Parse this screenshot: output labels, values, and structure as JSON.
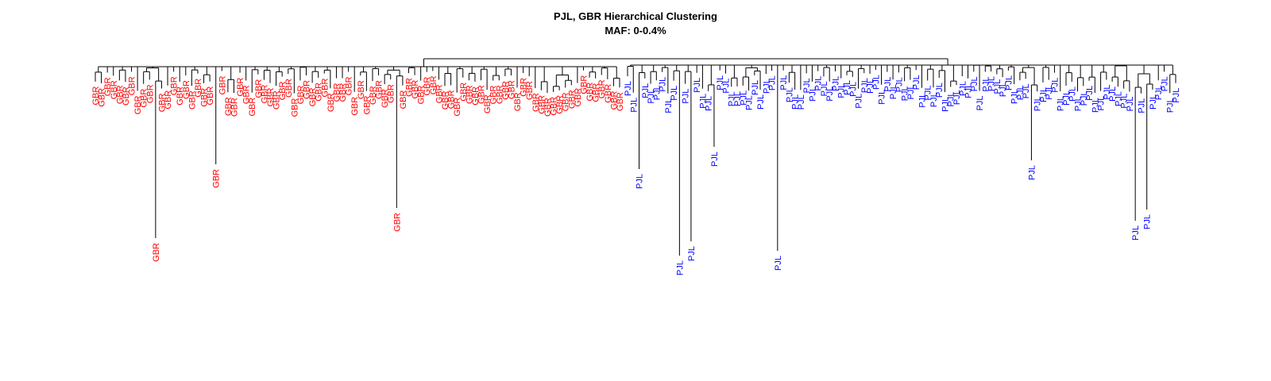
{
  "title": "PJL, GBR Hierarchical Clustering",
  "subtitle": "MAF: 0-0.4%",
  "populations": {
    "GBR": {
      "label": "GBR",
      "color": "#ff0000"
    },
    "PJL": {
      "label": "PJL",
      "color": "#0000ff"
    }
  },
  "chart_data": {
    "type": "dendrogram",
    "gbr_leaf_count": 88,
    "pjl_leaf_count": 96,
    "title": "PJL, GBR Hierarchical Clustering",
    "subtitle": "MAF: 0-0.4%"
  }
}
